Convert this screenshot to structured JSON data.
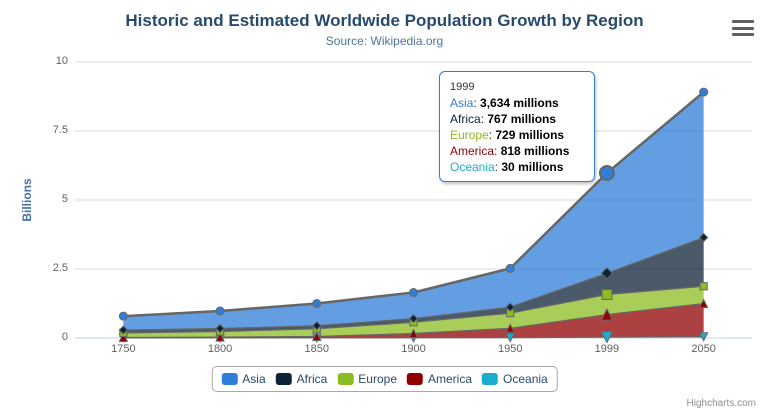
{
  "title": "Historic and Estimated Worldwide Population Growth by Region",
  "subtitle": "Source: Wikipedia.org",
  "credits": "Highcharts.com",
  "chart_data": {
    "type": "area",
    "stacking": "normal",
    "title": "Historic and Estimated Worldwide Population Growth by Region",
    "subtitle": "Source: Wikipedia.org",
    "categories": [
      "1750",
      "1800",
      "1850",
      "1900",
      "1950",
      "1999",
      "2050"
    ],
    "unit": "millions",
    "ylabel": "Billions",
    "ylim": [
      0,
      10
    ],
    "yticks": [
      0,
      2.5,
      5,
      7.5,
      10
    ],
    "grid": true,
    "legend_position": "bottom",
    "hover_category_index": 5,
    "hover_series": "Asia",
    "series": [
      {
        "name": "Asia",
        "color": "#2f7ed8",
        "marker": "circle",
        "values": [
          502,
          635,
          809,
          947,
          1402,
          3634,
          5268
        ]
      },
      {
        "name": "Africa",
        "color": "#0d233a",
        "marker": "diamond",
        "values": [
          106,
          107,
          111,
          133,
          221,
          767,
          1766
        ]
      },
      {
        "name": "Europe",
        "color": "#8bbc21",
        "marker": "square",
        "values": [
          163,
          203,
          276,
          408,
          547,
          729,
          628
        ]
      },
      {
        "name": "America",
        "color": "#910000",
        "marker": "triangle",
        "values": [
          18,
          31,
          54,
          156,
          339,
          818,
          1201
        ]
      },
      {
        "name": "Oceania",
        "color": "#1aadce",
        "marker": "triangle-down",
        "values": [
          2,
          2,
          2,
          6,
          13,
          30,
          46
        ]
      }
    ]
  },
  "y_axis": {
    "title": "Billions"
  },
  "tooltip": {
    "header": "1999",
    "rows": [
      {
        "name": "Asia",
        "color": "#2f7ed8",
        "value": "3,634 millions"
      },
      {
        "name": "Africa",
        "color": "#0d233a",
        "value": "767 millions"
      },
      {
        "name": "Europe",
        "color": "#8bbc21",
        "value": "729 millions"
      },
      {
        "name": "America",
        "color": "#910000",
        "value": "818 millions"
      },
      {
        "name": "Oceania",
        "color": "#1aadce",
        "value": "30 millions"
      }
    ]
  },
  "legend": {
    "items": [
      {
        "label": "Asia",
        "color": "#2f7ed8"
      },
      {
        "label": "Africa",
        "color": "#0d233a"
      },
      {
        "label": "Europe",
        "color": "#8bbc21"
      },
      {
        "label": "America",
        "color": "#910000"
      },
      {
        "label": "Oceania",
        "color": "#1aadce"
      }
    ]
  },
  "colors": {
    "title": "#274b6d",
    "subtitle": "#4d759e",
    "axis_labels": "#606060",
    "axis_title": "#4572a7",
    "grid_line": "#d8d8d8",
    "axis_line": "#c0d0e0",
    "series_line": "#666666",
    "marker_stroke": "#666666",
    "legend_border": "#a8a8a8",
    "credits_text": "#909090",
    "fill_opacity": 0.75
  }
}
